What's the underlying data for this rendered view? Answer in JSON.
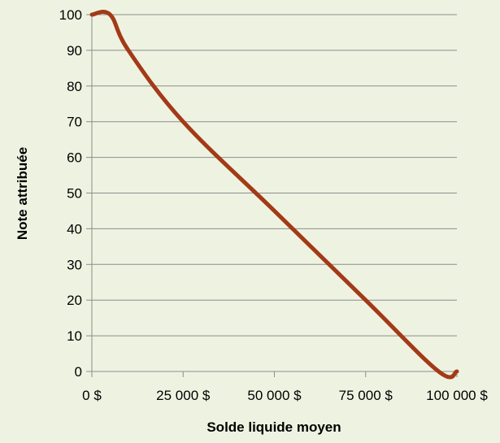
{
  "chart_data": {
    "type": "line",
    "title": "",
    "xlabel": "Solde liquide moyen",
    "ylabel": "Note attribuée",
    "x_ticks": [
      {
        "value": 0,
        "label": "0 $"
      },
      {
        "value": 25000,
        "label": "25 000 $"
      },
      {
        "value": 50000,
        "label": "50 000 $"
      },
      {
        "value": 75000,
        "label": "75 000 $"
      },
      {
        "value": 100000,
        "label": "100 000 $"
      }
    ],
    "y_ticks": [
      {
        "value": 0,
        "label": "0"
      },
      {
        "value": 10,
        "label": "10"
      },
      {
        "value": 20,
        "label": "20"
      },
      {
        "value": 30,
        "label": "30"
      },
      {
        "value": 40,
        "label": "40"
      },
      {
        "value": 50,
        "label": "50"
      },
      {
        "value": 60,
        "label": "60"
      },
      {
        "value": 70,
        "label": "70"
      },
      {
        "value": 80,
        "label": "80"
      },
      {
        "value": 90,
        "label": "90"
      },
      {
        "value": 100,
        "label": "100"
      }
    ],
    "xlim": [
      0,
      100000
    ],
    "ylim": [
      0,
      100
    ],
    "grid": "horizontal",
    "legend": "none",
    "series": [
      {
        "x": [
          0,
          5000,
          10000,
          25000,
          50000,
          75000,
          95000,
          100000
        ],
        "y": [
          100,
          100,
          90,
          70,
          45,
          20,
          0,
          0
        ],
        "color": "#a33a17"
      }
    ],
    "colors": {
      "background": "#eef3e1",
      "grid": "#8c8c8c",
      "axis": "#8c8c8c"
    }
  }
}
